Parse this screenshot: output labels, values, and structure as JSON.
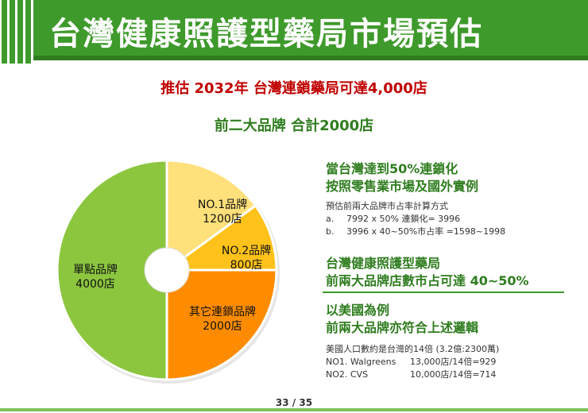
{
  "title": "台灣健康照護型藥局市場預估",
  "headline_red": "推估 2032年 台灣連鎖藥局可達4,000店",
  "headline_green": "前二大品牌 合計2000店",
  "chart_data": {
    "type": "pie",
    "categories": [
      "NO.1品牌",
      "NO.2品牌",
      "其它連鎖品牌",
      "單點品牌"
    ],
    "value_labels": [
      "1200店",
      "800店",
      "2000店",
      "4000店"
    ],
    "values": [
      1200,
      800,
      2000,
      4000
    ],
    "colors": [
      "#ffe07a",
      "#ffc21a",
      "#ff8c00",
      "#8cc63f"
    ],
    "style": "donut"
  },
  "right": {
    "block1_line1": "當台灣達到50%連鎖化",
    "block1_line2": "按照零售業市場及國外實例",
    "calc_title": "預估前兩大品牌市占率計算方式",
    "calc_a_label": "a.",
    "calc_a": "7992 x 50% 連鎖化= 3996",
    "calc_b_label": "b.",
    "calc_b": "3996 x 40~50%市占率 =1598~1998",
    "block2_line1": "台灣健康照護型藥局",
    "block2_line2": "前兩大品牌店數市占可達 40~50%",
    "block3_line1": "以美國為例",
    "block3_line2": "前兩大品牌亦符合上述邏輯",
    "us_line": "美國人口數約是台灣的14倍 (3.2億:2300萬)",
    "us_rows": [
      {
        "brand": "NO1. Walgreens",
        "value": "13,000店/14倍=929"
      },
      {
        "brand": "NO2. CVS",
        "value": "10,000店/14倍=714"
      }
    ]
  },
  "page_number": "33 / 35"
}
